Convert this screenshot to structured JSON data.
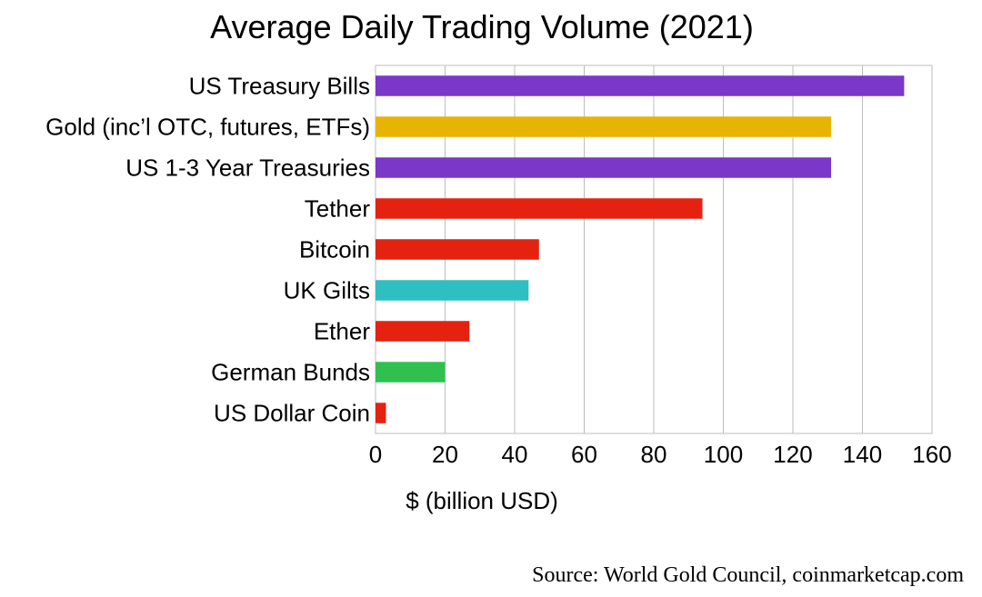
{
  "chart_data": {
    "type": "bar",
    "orientation": "horizontal",
    "title": "Average Daily Trading Volume (2021)",
    "xlabel": "$ (billion USD)",
    "ylabel": "",
    "xlim": [
      0,
      160
    ],
    "xticks": [
      0,
      20,
      40,
      60,
      80,
      100,
      120,
      140,
      160
    ],
    "grid": true,
    "categories": [
      "US Treasury Bills",
      "Gold (inc’l OTC, futures, ETFs)",
      "US 1-3 Year Treasuries",
      "Tether",
      "Bitcoin",
      "UK Gilts",
      "Ether",
      "German Bunds",
      "US Dollar Coin"
    ],
    "values": [
      152,
      131,
      131,
      94,
      47,
      44,
      27,
      20,
      3
    ],
    "colors": [
      "#7a37c8",
      "#e8b402",
      "#7a37c8",
      "#e52110",
      "#e52110",
      "#2fbfc0",
      "#e52110",
      "#2fc04f",
      "#e52110"
    ]
  },
  "source_note": "Source: World Gold Council, coinmarketcap.com"
}
